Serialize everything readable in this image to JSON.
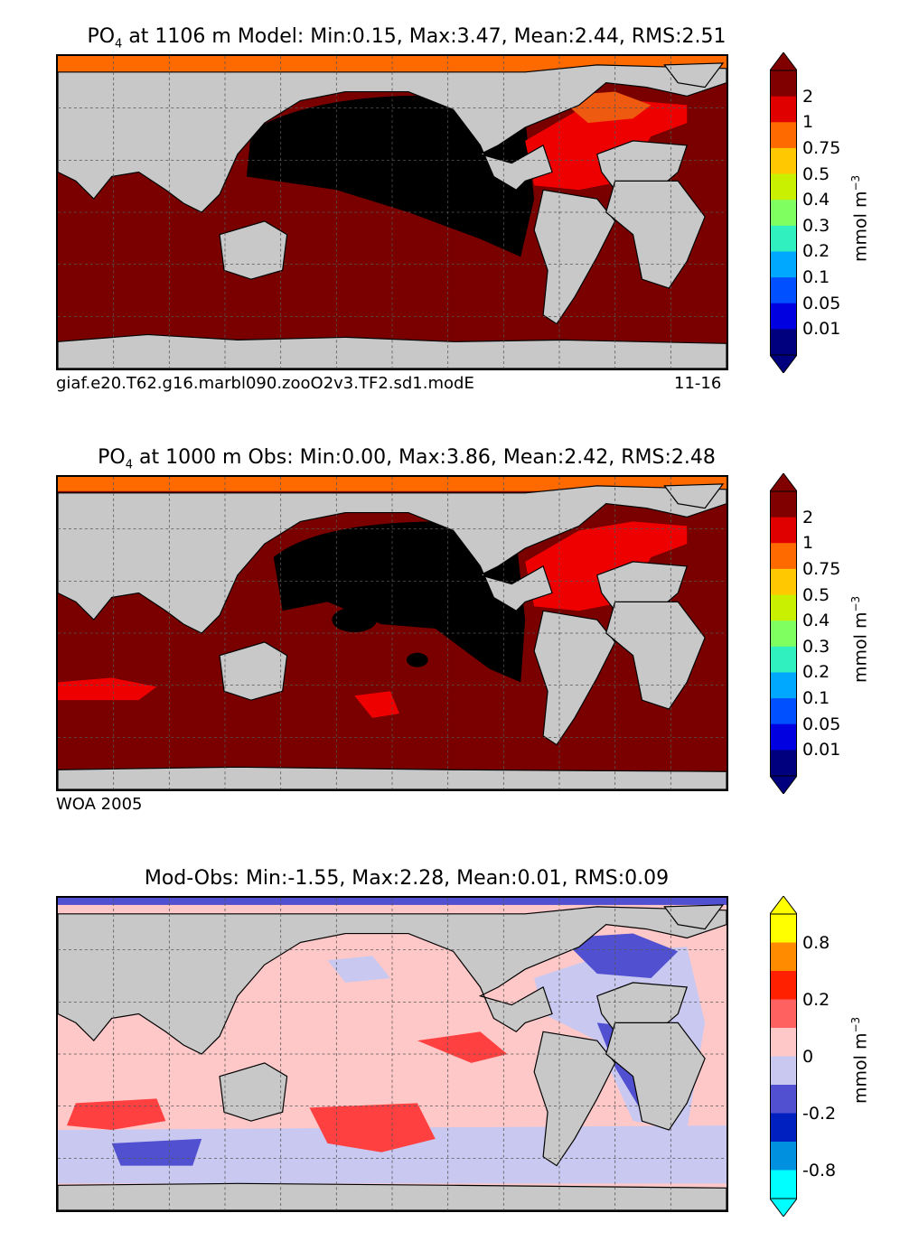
{
  "panels": [
    {
      "id": "model",
      "title_prefix": "PO",
      "title_sub": "4",
      "title_rest": " at 1106 m Model: Min:0.15, Max:3.47, Mean:2.44, RMS:2.51",
      "footer_left": "giaf.e20.T62.g16.marbl090.zooO2v3.TF2.sd1.modE",
      "footer_right": "11-16",
      "colorbar": {
        "unit": "mmol m",
        "unit_sup": "−3",
        "ticks": [
          "2",
          "1",
          "0.75",
          "0.5",
          "0.4",
          "0.3",
          "0.2",
          "0.1",
          "0.05",
          "0.01"
        ],
        "colors": [
          "#800000",
          "#e00000",
          "#ff6a00",
          "#ffc800",
          "#c8f000",
          "#80ff60",
          "#30f0c0",
          "#00a8ff",
          "#0050ff",
          "#0000e0",
          "#00007f"
        ]
      }
    },
    {
      "id": "obs",
      "title_prefix": "PO",
      "title_sub": "4",
      "title_rest": " at 1000 m Obs: Min:0.00, Max:3.86, Mean:2.42, RMS:2.48",
      "footer_left": "WOA 2005",
      "footer_right": "",
      "colorbar": {
        "unit": "mmol m",
        "unit_sup": "−3",
        "ticks": [
          "2",
          "1",
          "0.75",
          "0.5",
          "0.4",
          "0.3",
          "0.2",
          "0.1",
          "0.05",
          "0.01"
        ],
        "colors": [
          "#800000",
          "#e00000",
          "#ff6a00",
          "#ffc800",
          "#c8f000",
          "#80ff60",
          "#30f0c0",
          "#00a8ff",
          "#0050ff",
          "#0000e0",
          "#00007f"
        ]
      }
    },
    {
      "id": "diff",
      "title_prefix": "",
      "title_sub": "",
      "title_rest": "Mod-Obs: Min:-1.55, Max:2.28, Mean:0.01, RMS:0.09",
      "footer_left": "",
      "footer_right": "",
      "colorbar": {
        "unit": "mmol m",
        "unit_sup": "−3",
        "ticks": [
          "0.8",
          "0.2",
          "0",
          "-0.2",
          "-0.8"
        ],
        "colors": [
          "#ffff00",
          "#ff8c00",
          "#ff2000",
          "#ff6060",
          "#ffc8c8",
          "#c8c8f0",
          "#5050d0",
          "#0020c0",
          "#0090e0",
          "#00ffff"
        ]
      }
    }
  ]
}
